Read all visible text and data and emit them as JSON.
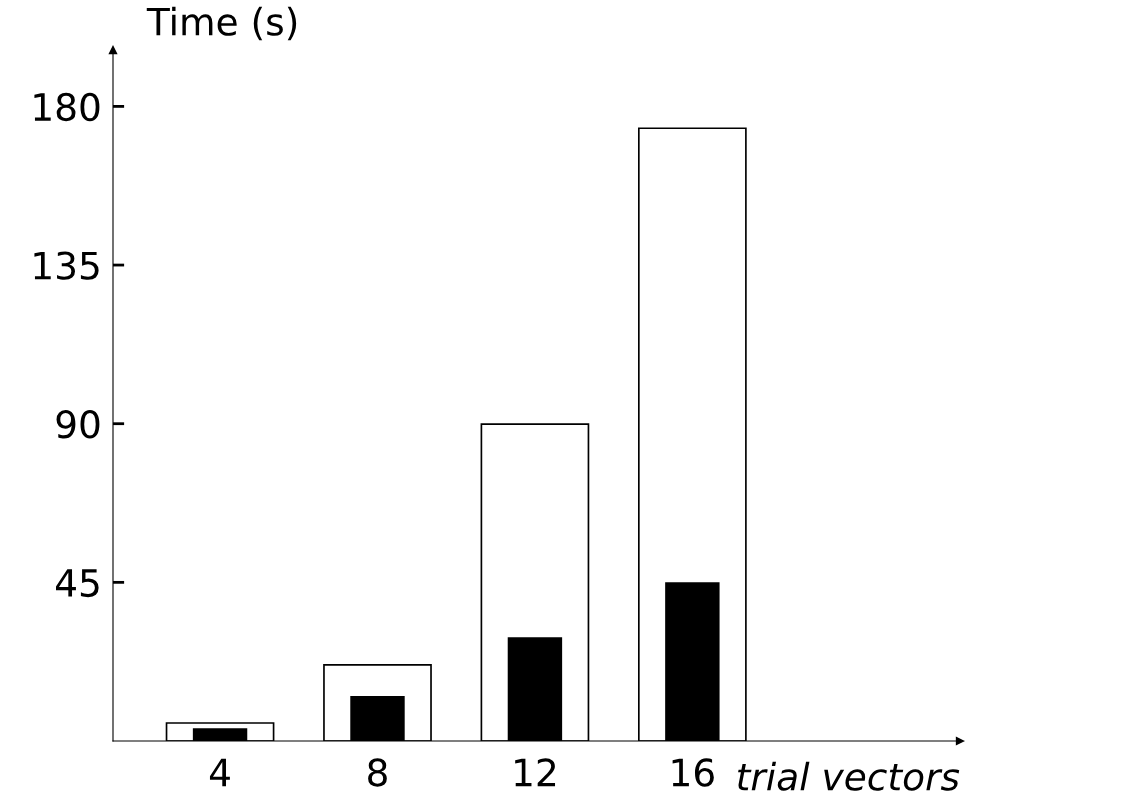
{
  "chart_data": {
    "type": "bar",
    "xlabel": "trial vectors",
    "ylabel": "Time (s)",
    "categories": [
      "4",
      "8",
      "12",
      "16"
    ],
    "series": [
      {
        "color": "#ffffff",
        "values": [
          5.1,
          21.6,
          89.9,
          173.8
        ]
      },
      {
        "color": "#000000",
        "values": [
          3.4,
          12.5,
          29.2,
          44.8
        ]
      }
    ],
    "ylim": [
      0,
      196
    ],
    "yticks": [
      45,
      90,
      135,
      180
    ],
    "grid": false,
    "legend": false
  }
}
